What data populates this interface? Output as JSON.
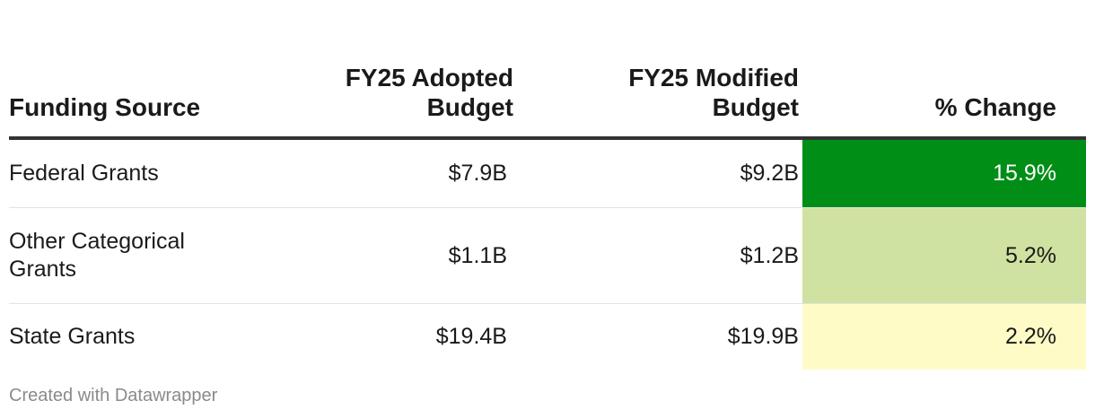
{
  "chart_data": {
    "type": "table",
    "columns": [
      {
        "label": "Funding Source",
        "align": "left"
      },
      {
        "label": "FY25 Adopted Budget",
        "align": "right"
      },
      {
        "label": "FY25 Modified Budget",
        "align": "right"
      },
      {
        "label": "% Change",
        "align": "right"
      }
    ],
    "rows": [
      {
        "source": "Federal Grants",
        "adopted": "$7.9B",
        "modified": "$9.2B",
        "change": "15.9%",
        "change_bg": "#008e17",
        "change_fg": "#ffffff"
      },
      {
        "source": "Other Categorical Grants",
        "adopted": "$1.1B",
        "modified": "$1.2B",
        "change": "5.2%",
        "change_bg": "#d0e2a1",
        "change_fg": "#1a1a1a"
      },
      {
        "source": "State Grants",
        "adopted": "$19.4B",
        "modified": "$19.9B",
        "change": "2.2%",
        "change_bg": "#fefbc7",
        "change_fg": "#1a1a1a"
      }
    ]
  },
  "footer": {
    "credit": "Created with Datawrapper"
  }
}
